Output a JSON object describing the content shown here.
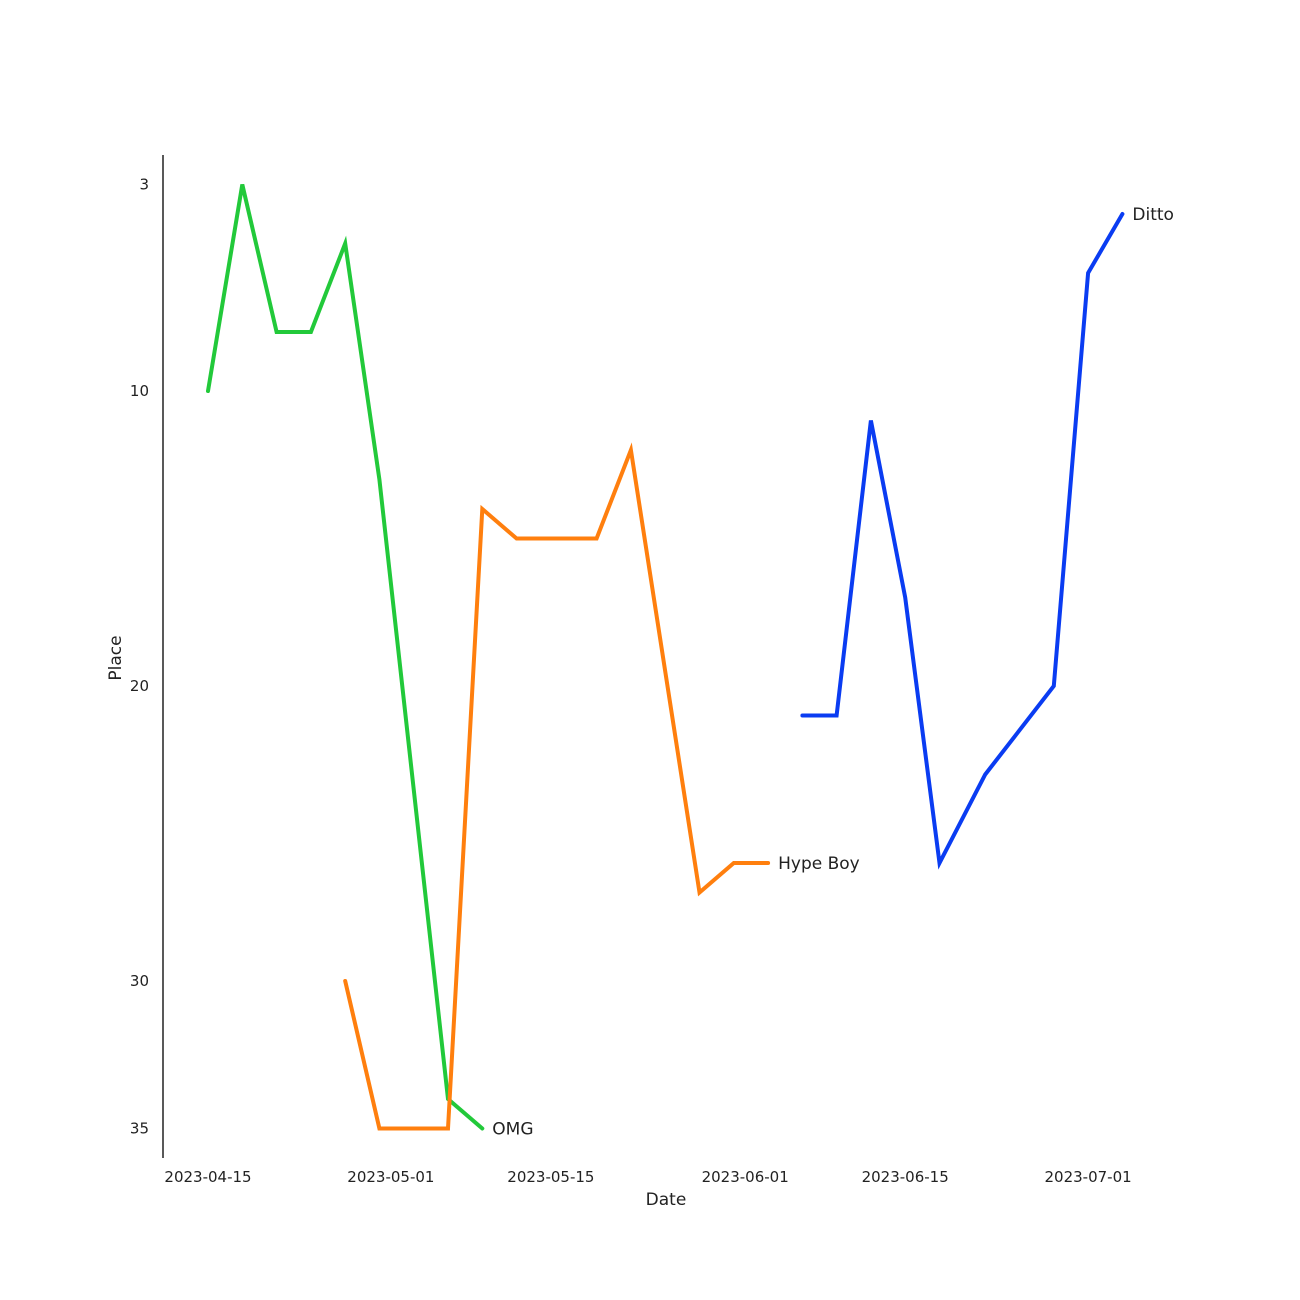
{
  "chart_data": {
    "type": "line",
    "title": "",
    "xlabel": "Date",
    "ylabel": "Place",
    "y_inverted": true,
    "ylim": [
      36,
      2
    ],
    "xlim": [
      "2023-04-11",
      "2023-07-08"
    ],
    "grid": false,
    "legend": "none",
    "x_ticks": [
      "2023-04-15",
      "2023-05-01",
      "2023-05-15",
      "2023-06-01",
      "2023-06-15",
      "2023-07-01"
    ],
    "y_ticks": [
      3,
      10,
      20,
      30,
      35
    ],
    "series": [
      {
        "name": "OMG",
        "color": "#22c93a",
        "points": [
          [
            "2023-04-15",
            10
          ],
          [
            "2023-04-18",
            3
          ],
          [
            "2023-04-21",
            8
          ],
          [
            "2023-04-24",
            8
          ],
          [
            "2023-04-27",
            5
          ],
          [
            "2023-04-30",
            13
          ],
          [
            "2023-05-06",
            34
          ],
          [
            "2023-05-09",
            35
          ]
        ]
      },
      {
        "name": "Hype Boy",
        "color": "#ff7f0e",
        "points": [
          [
            "2023-04-27",
            30
          ],
          [
            "2023-04-30",
            35
          ],
          [
            "2023-05-06",
            35
          ],
          [
            "2023-05-09",
            14
          ],
          [
            "2023-05-12",
            15
          ],
          [
            "2023-05-19",
            15
          ],
          [
            "2023-05-22",
            12
          ],
          [
            "2023-05-28",
            27
          ],
          [
            "2023-05-31",
            26
          ],
          [
            "2023-06-03",
            26
          ]
        ]
      },
      {
        "name": "Ditto",
        "color": "#0a3cf2",
        "points": [
          [
            "2023-06-06",
            21
          ],
          [
            "2023-06-09",
            21
          ],
          [
            "2023-06-12",
            11
          ],
          [
            "2023-06-15",
            17
          ],
          [
            "2023-06-18",
            26
          ],
          [
            "2023-06-22",
            23
          ],
          [
            "2023-06-28",
            20
          ],
          [
            "2023-07-01",
            6
          ],
          [
            "2023-07-04",
            4
          ]
        ]
      }
    ]
  }
}
